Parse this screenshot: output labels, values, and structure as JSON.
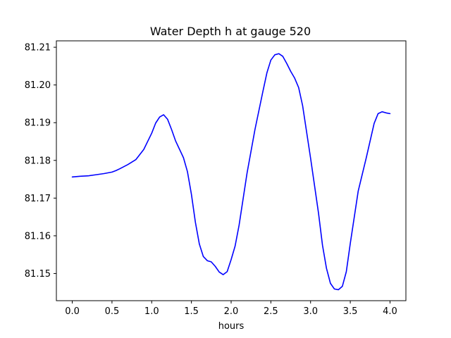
{
  "chart_data": {
    "type": "line",
    "title": "Water Depth h at gauge 520",
    "xlabel": "hours",
    "ylabel": "",
    "xlim": [
      -0.2,
      4.2
    ],
    "ylim": [
      81.1428,
      81.2117
    ],
    "xticks": [
      0.0,
      0.5,
      1.0,
      1.5,
      2.0,
      2.5,
      3.0,
      3.5,
      4.0
    ],
    "xtick_labels": [
      "0.0",
      "0.5",
      "1.0",
      "1.5",
      "2.0",
      "2.5",
      "3.0",
      "3.5",
      "4.0"
    ],
    "yticks": [
      81.15,
      81.16,
      81.17,
      81.18,
      81.19,
      81.2,
      81.21
    ],
    "ytick_labels": [
      "81.15",
      "81.16",
      "81.17",
      "81.18",
      "81.19",
      "81.20",
      "81.21"
    ],
    "grid": false,
    "series": [
      {
        "color": "#0000ff",
        "x": [
          0.0,
          0.1,
          0.2,
          0.3,
          0.4,
          0.5,
          0.55,
          0.6,
          0.7,
          0.8,
          0.9,
          1.0,
          1.05,
          1.1,
          1.15,
          1.2,
          1.25,
          1.3,
          1.4,
          1.45,
          1.5,
          1.55,
          1.6,
          1.65,
          1.7,
          1.75,
          1.8,
          1.85,
          1.9,
          1.95,
          2.0,
          2.05,
          2.1,
          2.2,
          2.3,
          2.4,
          2.45,
          2.5,
          2.55,
          2.6,
          2.65,
          2.7,
          2.75,
          2.8,
          2.85,
          2.9,
          3.0,
          3.1,
          3.15,
          3.2,
          3.25,
          3.3,
          3.35,
          3.4,
          3.45,
          3.5,
          3.6,
          3.7,
          3.8,
          3.85,
          3.9,
          3.95,
          4.0
        ],
        "y": [
          81.1756,
          81.1758,
          81.1759,
          81.1762,
          81.1765,
          81.1769,
          81.1773,
          81.1778,
          81.1789,
          81.1802,
          81.1829,
          81.1872,
          81.1899,
          81.1915,
          81.1921,
          81.1909,
          81.1882,
          81.1852,
          81.1807,
          81.177,
          81.171,
          81.1636,
          81.1578,
          81.1545,
          81.1534,
          81.1531,
          81.1519,
          81.1504,
          81.1497,
          81.1505,
          81.1537,
          81.1573,
          81.1628,
          81.1766,
          81.1882,
          81.1983,
          81.2032,
          81.2066,
          81.208,
          81.2083,
          81.2076,
          81.2057,
          81.2036,
          81.2018,
          81.1993,
          81.1945,
          81.1806,
          81.166,
          81.1575,
          81.1514,
          81.1474,
          81.1459,
          81.1457,
          81.1466,
          81.1505,
          81.158,
          81.1719,
          81.1806,
          81.1898,
          81.1924,
          81.1929,
          81.1926,
          81.1924
        ]
      }
    ]
  }
}
